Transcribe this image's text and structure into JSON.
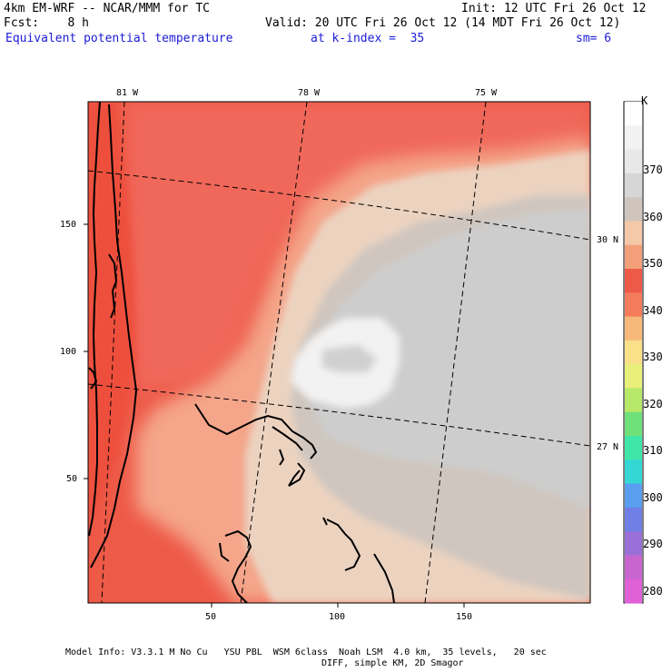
{
  "header": {
    "model": "4km EM-WRF -- NCAR/MMM for TC",
    "init": "Init: 12 UTC Fri 26 Oct 12",
    "fcst": "Fcst:    8 h",
    "valid": "Valid: 20 UTC Fri 26 Oct 12 (14 MDT Fri 26 Oct 12)",
    "field": "Equivalent potential temperature",
    "kindex": "at k-index =  35",
    "sm": "sm= 6"
  },
  "map": {
    "lon_labels": [
      "81 W",
      "78 W",
      "75 W"
    ],
    "lat_labels": [
      "30 N",
      "27 N"
    ],
    "x_ticks": [
      "50",
      "100",
      "150"
    ],
    "y_ticks": [
      "150",
      "100",
      "50"
    ]
  },
  "colorbar": {
    "unit": "K",
    "levels": [
      "280",
      "290",
      "300",
      "310",
      "320",
      "330",
      "340",
      "350",
      "360",
      "370"
    ],
    "colors": [
      "#ffffff",
      "#f2f2f2",
      "#e8e8e8",
      "#d6d6d6",
      "#cfc5bd",
      "#f4c8a8",
      "#f3a07a",
      "#ee5a48",
      "#f47c5c",
      "#f6b979",
      "#fbe08a",
      "#e8f07a",
      "#b8e868",
      "#6fe07a",
      "#3fe6a8",
      "#34d7d4",
      "#5a9ef0",
      "#6f7fe6",
      "#9a70d8",
      "#c865cf",
      "#e060d8"
    ]
  },
  "footer": {
    "line1": "Model Info: V3.3.1 M No Cu   YSU PBL  WSM 6class  Noah LSM  4.0 km,  35 levels,   20 sec",
    "line2": "DIFF, simple KM, 2D Smagor"
  }
}
